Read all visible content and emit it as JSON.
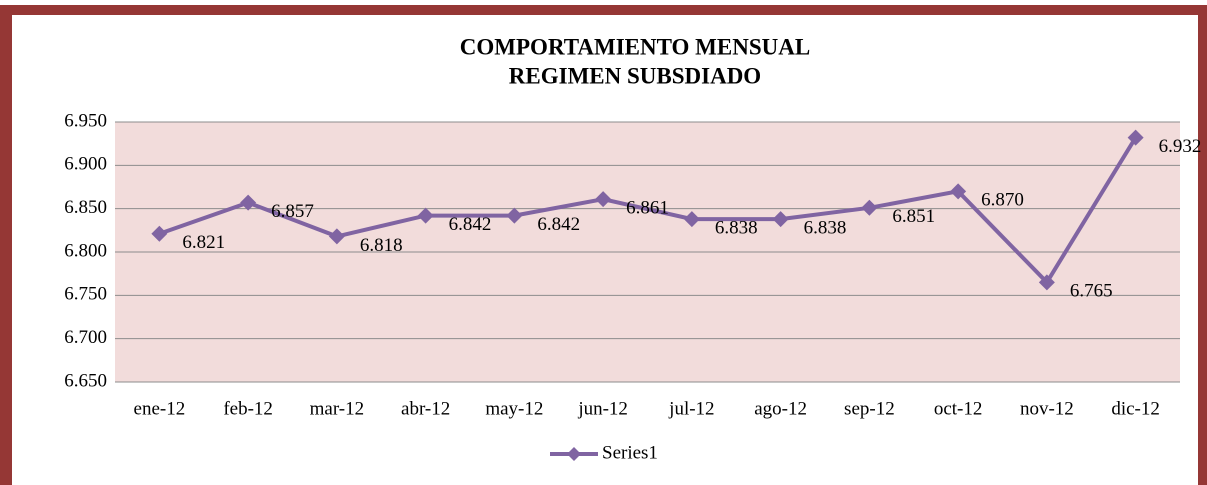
{
  "chart_data": {
    "type": "line",
    "title": [
      "COMPORTAMIENTO MENSUAL",
      "REGIMEN SUBSDIADO"
    ],
    "categories": [
      "ene-12",
      "feb-12",
      "mar-12",
      "abr-12",
      "may-12",
      "jun-12",
      "jul-12",
      "ago-12",
      "sep-12",
      "oct-12",
      "nov-12",
      "dic-12"
    ],
    "series": [
      {
        "name": "Series1",
        "color": "#8064a2",
        "values": [
          6821,
          6857,
          6818,
          6842,
          6842,
          6861,
          6838,
          6838,
          6851,
          6870,
          6765,
          6932
        ],
        "value_labels": [
          "6.821",
          "6.857",
          "6.818",
          "6.842",
          "6.842",
          "6.861",
          "6.838",
          "6.838",
          "6.851",
          "6.870",
          "6.765",
          "6.932"
        ]
      }
    ],
    "ylim": [
      6650,
      6950
    ],
    "yticks": [
      {
        "value": 6650,
        "label": "6.650"
      },
      {
        "value": 6700,
        "label": "6.700"
      },
      {
        "value": 6750,
        "label": "6.750"
      },
      {
        "value": 6800,
        "label": "6.800"
      },
      {
        "value": 6850,
        "label": "6.850"
      },
      {
        "value": 6900,
        "label": "6.900"
      },
      {
        "value": 6950,
        "label": "6.950"
      }
    ],
    "grid": true,
    "legend": "bottom"
  }
}
